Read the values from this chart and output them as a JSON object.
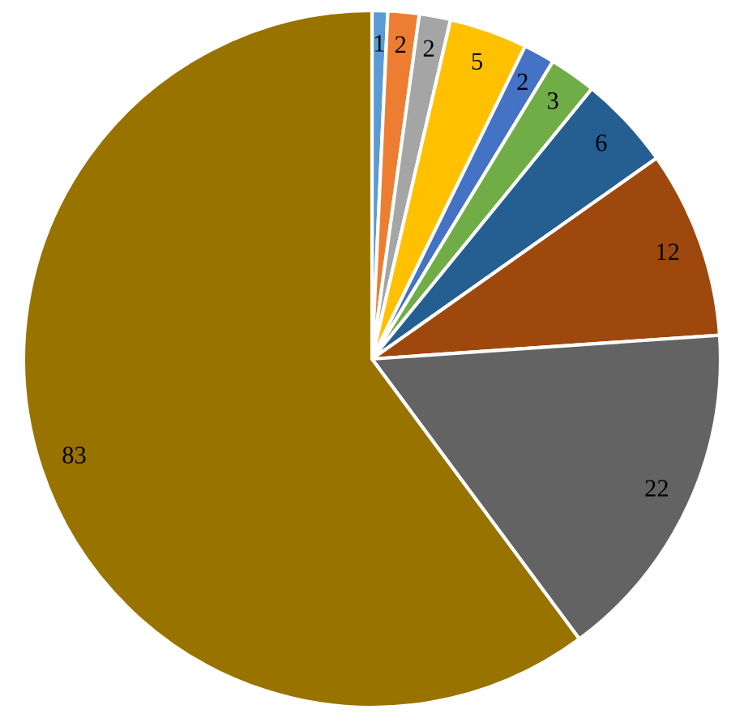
{
  "chart_data": {
    "type": "pie",
    "categories": [
      null,
      null,
      null,
      null,
      null,
      null,
      null,
      null,
      null,
      null
    ],
    "values": [
      1,
      2,
      2,
      5,
      2,
      3,
      6,
      12,
      22,
      83
    ],
    "colors": [
      "#5b9bd5",
      "#ed7d31",
      "#a5a5a5",
      "#ffc000",
      "#4472c4",
      "#70ad47",
      "#255e91",
      "#9e480e",
      "#636363",
      "#997300"
    ],
    "data_labels": true
  }
}
